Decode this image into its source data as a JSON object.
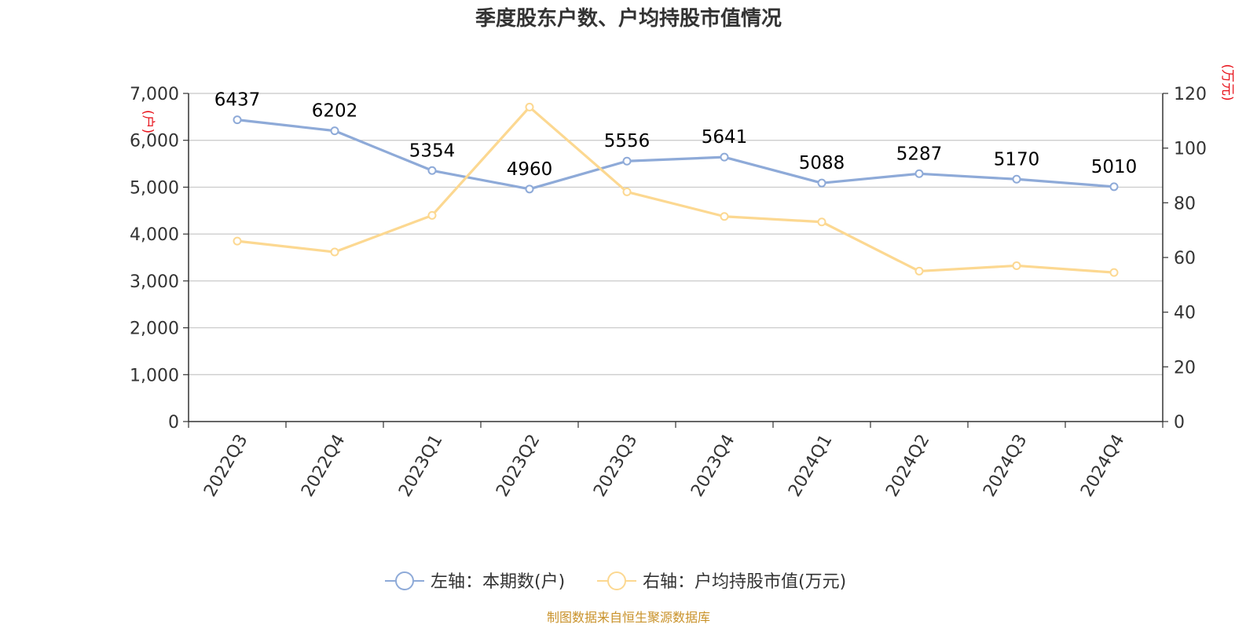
{
  "title": "季度股东户数、户均持股市值情况",
  "source": "制图数据来自恒生聚源数据库",
  "colors": {
    "left_series": "#8eaad8",
    "right_series": "#fcd891",
    "grid": "#c8c8c8",
    "axis": "#333333",
    "unit_label": "#e8141c",
    "source": "#c9922a"
  },
  "chart_data": {
    "type": "line",
    "title": "季度股东户数、户均持股市值情况",
    "categories": [
      "2022Q3",
      "2022Q4",
      "2023Q1",
      "2023Q2",
      "2023Q3",
      "2023Q4",
      "2024Q1",
      "2024Q2",
      "2024Q3",
      "2024Q4"
    ],
    "left_axis": {
      "unit": "(户)",
      "ylim": [
        0,
        7000
      ],
      "ticks": [
        0,
        1000,
        2000,
        3000,
        4000,
        5000,
        6000,
        7000
      ],
      "tick_labels": [
        "0",
        "1,000",
        "2,000",
        "3,000",
        "4,000",
        "5,000",
        "6,000",
        "7,000"
      ]
    },
    "right_axis": {
      "unit": "(万元)",
      "ylim": [
        0,
        120
      ],
      "ticks": [
        0,
        20,
        40,
        60,
        80,
        100,
        120
      ],
      "tick_labels": [
        "0",
        "20",
        "40",
        "60",
        "80",
        "100",
        "120"
      ]
    },
    "series": [
      {
        "name": "左轴：本期数(户)",
        "axis": "left",
        "values": [
          6437,
          6202,
          5354,
          4960,
          5556,
          5641,
          5088,
          5287,
          5170,
          5010
        ],
        "labels": [
          "6437",
          "6202",
          "5354",
          "4960",
          "5556",
          "5641",
          "5088",
          "5287",
          "5170",
          "5010"
        ]
      },
      {
        "name": "右轴：户均持股市值(万元)",
        "axis": "right",
        "values": [
          66,
          62,
          75.4,
          115,
          84,
          75,
          73,
          55,
          57,
          54.5
        ]
      }
    ],
    "grid": true,
    "legend_position": "bottom-center"
  }
}
